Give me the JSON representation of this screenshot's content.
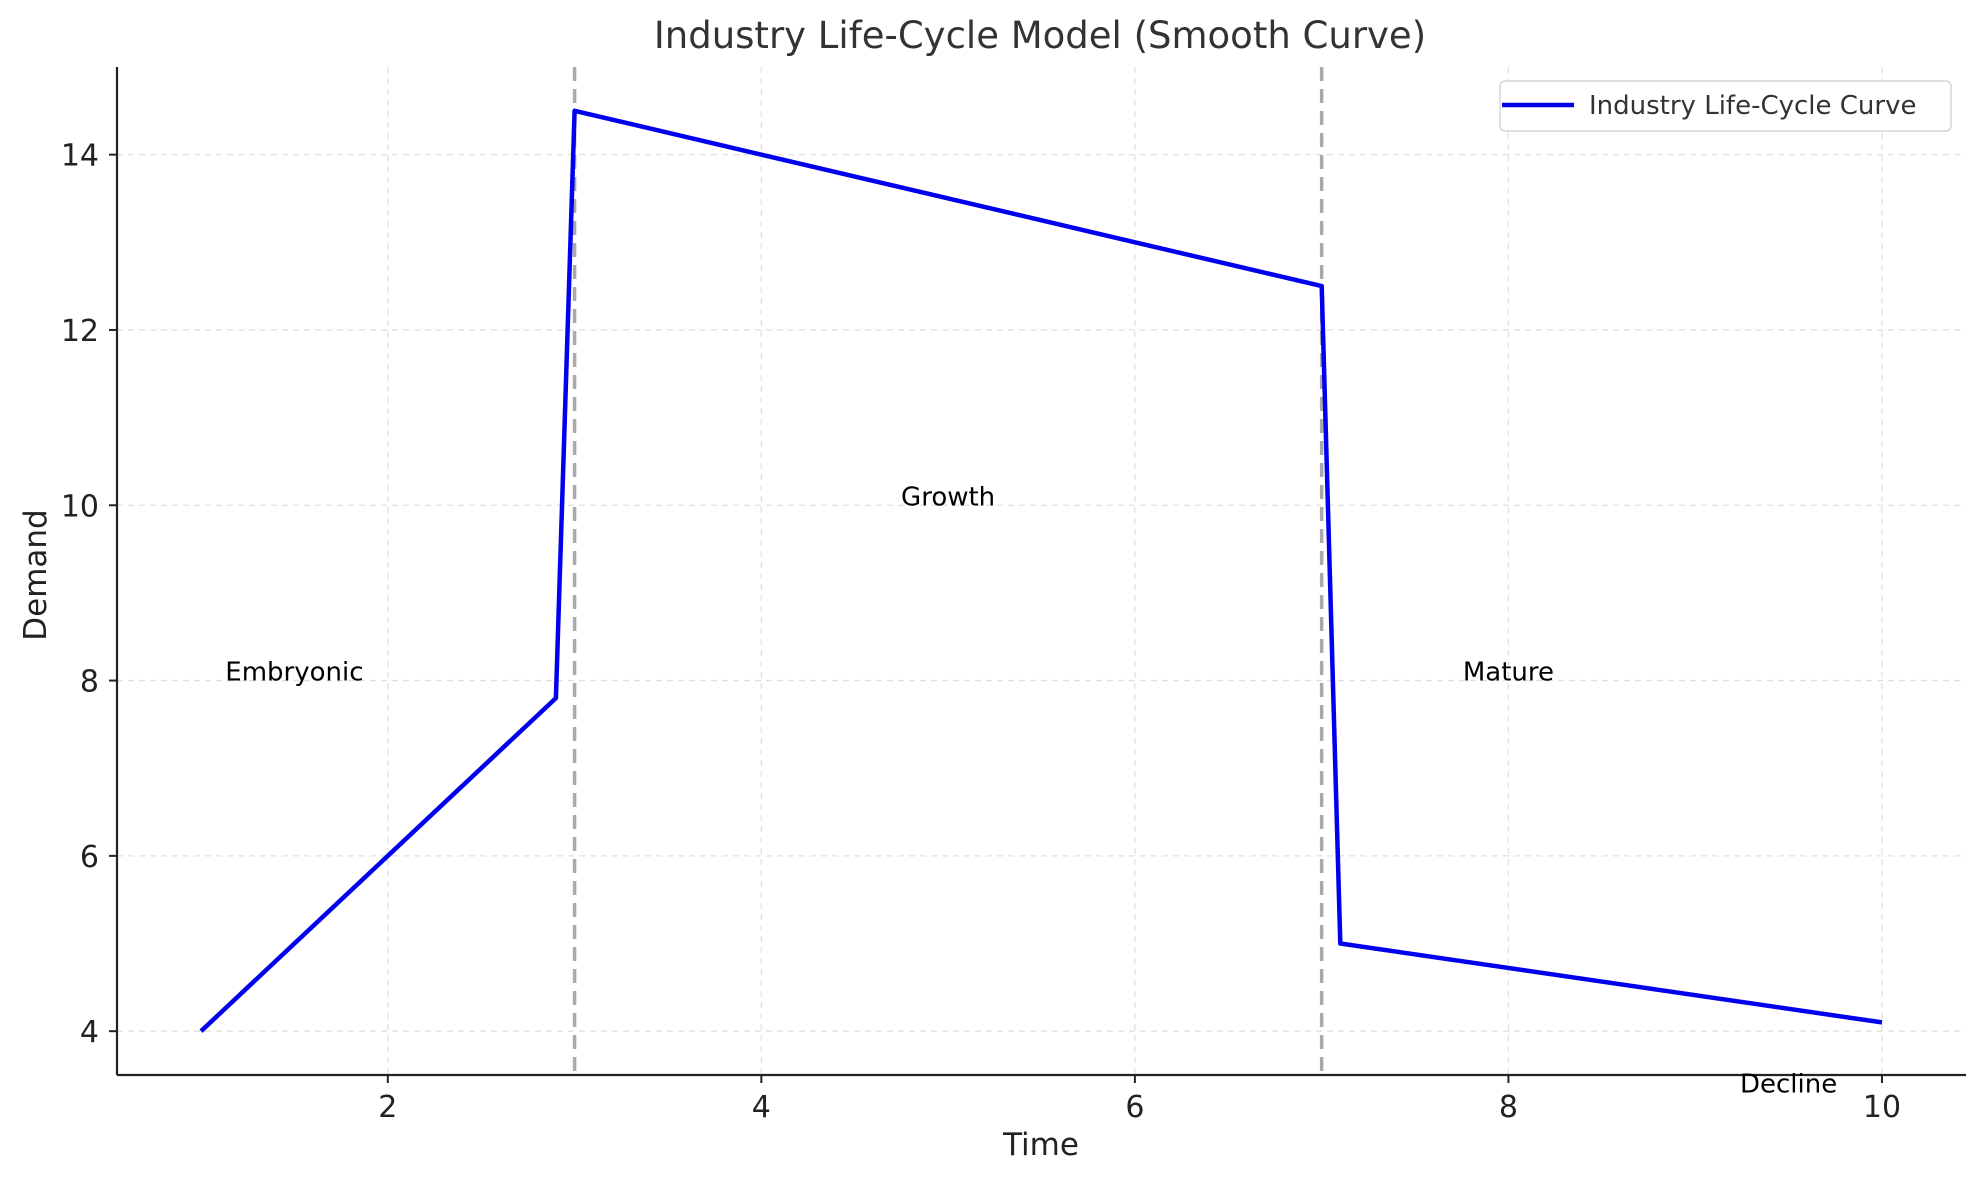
{
  "chart_data": {
    "type": "line",
    "title": "Industry Life-Cycle Model (Smooth Curve)",
    "xlabel": "Time",
    "ylabel": "Demand",
    "xlim": [
      0.55,
      10.45
    ],
    "ylim": [
      3.5,
      15.0
    ],
    "xticks": [
      2,
      4,
      6,
      8,
      10
    ],
    "yticks": [
      4,
      6,
      8,
      10,
      12,
      14
    ],
    "grid": true,
    "legend_position": "top-right",
    "series": [
      {
        "name": "Industry Life-Cycle Curve",
        "color": "#0000ee",
        "x": [
          1.0,
          2.9,
          3.0,
          7.0,
          7.1,
          10.0
        ],
        "y": [
          4.0,
          7.8,
          14.5,
          12.5,
          5.0,
          4.1
        ]
      }
    ],
    "vertical_lines": [
      {
        "x": 3,
        "color": "#aaaaaa",
        "style": "dashed"
      },
      {
        "x": 7,
        "color": "#aaaaaa",
        "style": "dashed"
      }
    ],
    "annotations": [
      {
        "text": "Embryonic",
        "x": 1.5,
        "y": 8
      },
      {
        "text": "Growth",
        "x": 5.0,
        "y": 10
      },
      {
        "text": "Mature",
        "x": 8.0,
        "y": 8
      },
      {
        "text": "Decline",
        "x": 9.5,
        "y": 3.3
      }
    ]
  }
}
